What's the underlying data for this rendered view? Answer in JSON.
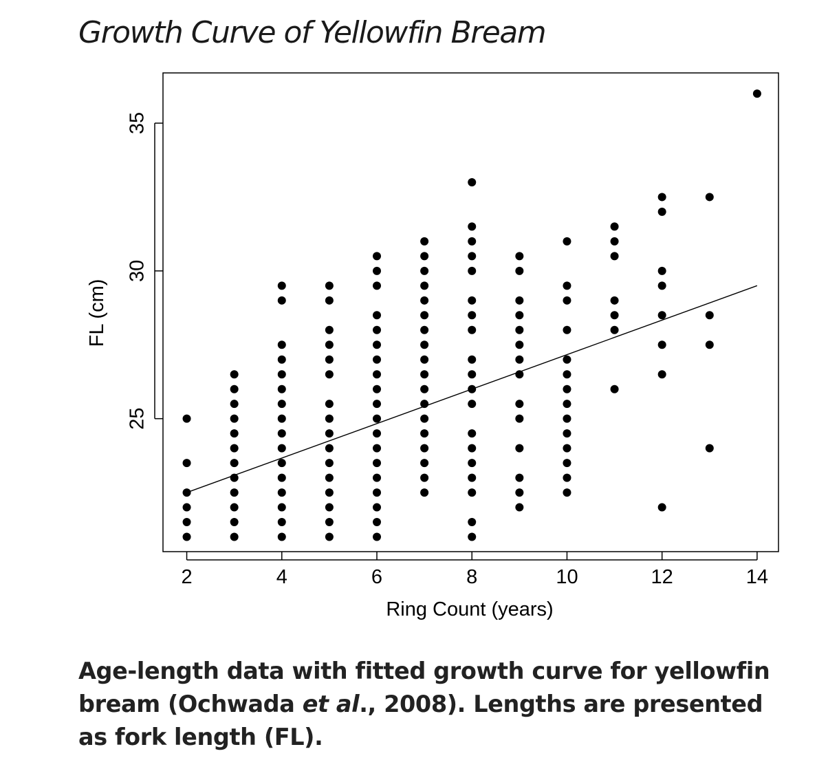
{
  "title": "Growth Curve of Yellowfin Bream",
  "caption": {
    "part1": "Age-length data with fitted growth curve for yellowfin bream (Ochwada ",
    "italic": "et al",
    "part2": "., 2008). Lengths are presented as fork length (FL)."
  },
  "chart_data": {
    "type": "scatter",
    "title": "Growth Curve of Yellowfin Bream",
    "xlabel": "Ring Count (years)",
    "ylabel": "FL (cm)",
    "xlim": [
      1.5,
      14.45
    ],
    "ylim": [
      20.5,
      36.7
    ],
    "x_ticks": [
      2,
      4,
      6,
      8,
      10,
      12,
      14
    ],
    "x_tick_labels": [
      "2",
      "4",
      "6",
      "8",
      "10",
      "12",
      "14"
    ],
    "y_ticks": [
      25,
      30,
      35
    ],
    "y_tick_labels": [
      "25",
      "30",
      "35"
    ],
    "grid": false,
    "legend": "none",
    "points_by_x": {
      "2": [
        21,
        21.5,
        22,
        22.5,
        23.5,
        25
      ],
      "3": [
        21,
        21.5,
        22,
        22.5,
        23,
        23.5,
        24,
        24.5,
        25,
        25.5,
        26,
        26.5
      ],
      "4": [
        21,
        21.5,
        22,
        22.5,
        23,
        23.5,
        24,
        24.5,
        25,
        25.5,
        26,
        26.5,
        27,
        27.5,
        29,
        29.5
      ],
      "5": [
        21,
        21.5,
        22,
        22.5,
        23,
        23.5,
        24,
        24.5,
        25,
        25.5,
        26.5,
        27,
        27.5,
        28,
        29,
        29.5
      ],
      "6": [
        21,
        21.5,
        22,
        22.5,
        23,
        23.5,
        24,
        24.5,
        25,
        25.5,
        26,
        26.5,
        27,
        27.5,
        28,
        28.5,
        29.5,
        30,
        30.5
      ],
      "7": [
        22.5,
        23,
        23.5,
        24,
        24.5,
        25,
        25.5,
        26,
        26.5,
        27,
        27.5,
        28,
        28.5,
        29,
        29.5,
        30,
        30.5,
        31
      ],
      "8": [
        21,
        21.5,
        22.5,
        23,
        23.5,
        24,
        24.5,
        25.5,
        26,
        26.5,
        27,
        28,
        28.5,
        29,
        30,
        30.5,
        31,
        31.5,
        33
      ],
      "9": [
        22,
        22.5,
        23,
        24,
        25,
        25.5,
        26.5,
        27,
        27.5,
        28,
        28.5,
        29,
        30,
        30.5
      ],
      "10": [
        22.5,
        23,
        23.5,
        24,
        24.5,
        25,
        25.5,
        26,
        26.5,
        27,
        28,
        29,
        29.5,
        31
      ],
      "11": [
        26,
        28,
        28.5,
        29,
        30.5,
        31,
        31.5
      ],
      "12": [
        22,
        26.5,
        27.5,
        28.5,
        29.5,
        30,
        32,
        32.5
      ],
      "13": [
        24,
        27.5,
        28.5,
        32.5
      ],
      "14": [
        36
      ]
    },
    "fit_line": {
      "x": [
        2,
        14
      ],
      "y": [
        22.5,
        29.5
      ]
    },
    "colors": {
      "points": "#000000",
      "line": "#000000"
    }
  }
}
